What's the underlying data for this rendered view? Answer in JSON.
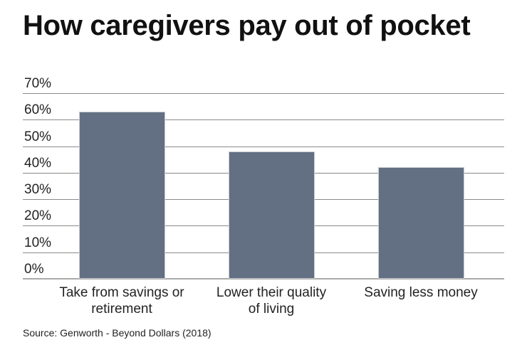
{
  "chart_data": {
    "type": "bar",
    "title": "How caregivers pay out of pocket",
    "categories": [
      "Take from savings or retirement",
      "Lower their quality of living",
      "Saving less money"
    ],
    "values": [
      63,
      48,
      42
    ],
    "xlabel": "",
    "ylabel": "",
    "ylim": [
      0,
      70
    ],
    "yticks": [
      "0%",
      "10%",
      "20%",
      "30%",
      "40%",
      "50%",
      "60%",
      "70%"
    ],
    "grid": true,
    "legend": null,
    "bar_color": "#637083",
    "source": "Source: Genworth - Beyond Dollars (2018)"
  },
  "labels": {
    "cat0_line1": "Take from savings or",
    "cat0_line2": "retirement",
    "cat1_line1": "Lower their quality",
    "cat1_line2": "of living",
    "cat2_line1": "Saving less money"
  }
}
